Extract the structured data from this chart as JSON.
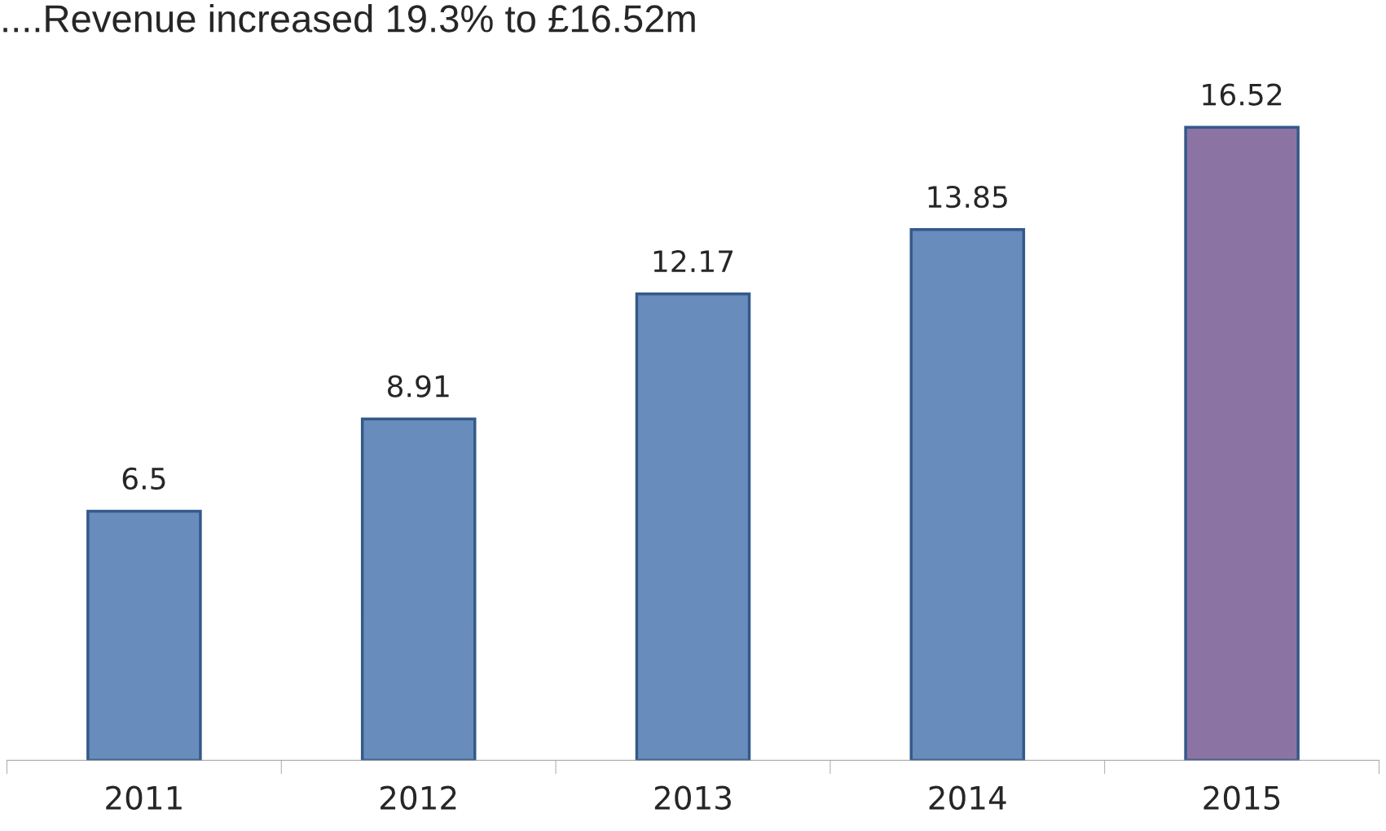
{
  "chart_data": {
    "type": "bar",
    "title": "....Revenue increased 19.3% to £16.52m",
    "categories": [
      "2011",
      "2012",
      "2013",
      "2014",
      "2015"
    ],
    "values": [
      6.5,
      8.91,
      12.17,
      13.85,
      16.52
    ],
    "colors": [
      "#5a8bcb",
      "#5a8bcb",
      "#5a8bcb",
      "#5a8bcb",
      "#8a6cac"
    ],
    "data_labels": true,
    "grid": false,
    "legend": false
  }
}
